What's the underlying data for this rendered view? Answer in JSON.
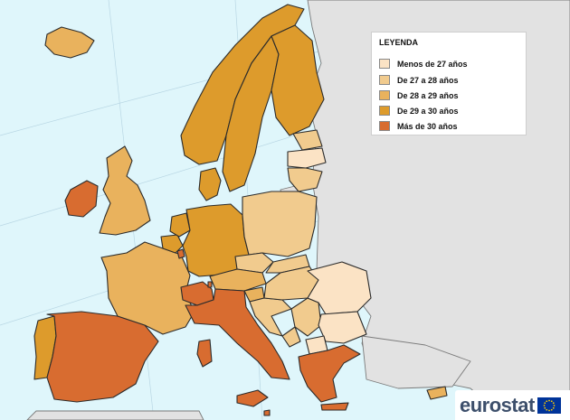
{
  "legend": {
    "title": "LEYENDA",
    "items": [
      {
        "label": "Menos de 27 años",
        "color": "#fbe3c5"
      },
      {
        "label": "De 27 a 28 años",
        "color": "#f1cb8e"
      },
      {
        "label": "De 28 a 29 años",
        "color": "#e9b25d"
      },
      {
        "label": "De 29 a 30 años",
        "color": "#dd9b2c"
      },
      {
        "label": "Más de 30 años",
        "color": "#d86c30"
      }
    ]
  },
  "colors": {
    "sea": "#dff6fb",
    "non_member": "#e2e2e2",
    "border": "#2b2b2b",
    "eurostat_text": "#3d4f6b",
    "eu_flag": "#003399",
    "eu_stars": "#ffcc00"
  },
  "logo": {
    "text": "eurostat",
    "icon": "eu-flag-icon"
  },
  "regions": [
    {
      "id": "iceland",
      "class": 2
    },
    {
      "id": "ireland",
      "class": 4
    },
    {
      "id": "united-kingdom",
      "class": 2
    },
    {
      "id": "portugal",
      "class": 3
    },
    {
      "id": "spain",
      "class": 4
    },
    {
      "id": "france",
      "class": 2
    },
    {
      "id": "belgium",
      "class": 3
    },
    {
      "id": "netherlands",
      "class": 3
    },
    {
      "id": "luxembourg",
      "class": 4
    },
    {
      "id": "germany",
      "class": 3
    },
    {
      "id": "denmark",
      "class": 3
    },
    {
      "id": "norway",
      "class": 3
    },
    {
      "id": "sweden",
      "class": 3
    },
    {
      "id": "finland",
      "class": 3
    },
    {
      "id": "estonia",
      "class": 1
    },
    {
      "id": "latvia",
      "class": 0
    },
    {
      "id": "lithuania",
      "class": 1
    },
    {
      "id": "poland",
      "class": 1
    },
    {
      "id": "czechia",
      "class": 1
    },
    {
      "id": "slovakia",
      "class": 1
    },
    {
      "id": "austria",
      "class": 2
    },
    {
      "id": "switzerland",
      "class": 4
    },
    {
      "id": "italy",
      "class": 4
    },
    {
      "id": "slovenia",
      "class": 2
    },
    {
      "id": "croatia",
      "class": 1
    },
    {
      "id": "hungary",
      "class": 1
    },
    {
      "id": "romania",
      "class": 0
    },
    {
      "id": "bulgaria",
      "class": 0
    },
    {
      "id": "greece",
      "class": 4
    },
    {
      "id": "cyprus",
      "class": 2
    },
    {
      "id": "malta",
      "class": 4
    },
    {
      "id": "serbia",
      "class": 1
    },
    {
      "id": "montenegro",
      "class": 1
    },
    {
      "id": "north-macedonia",
      "class": 0
    },
    {
      "id": "liechtenstein",
      "class": 4
    }
  ]
}
